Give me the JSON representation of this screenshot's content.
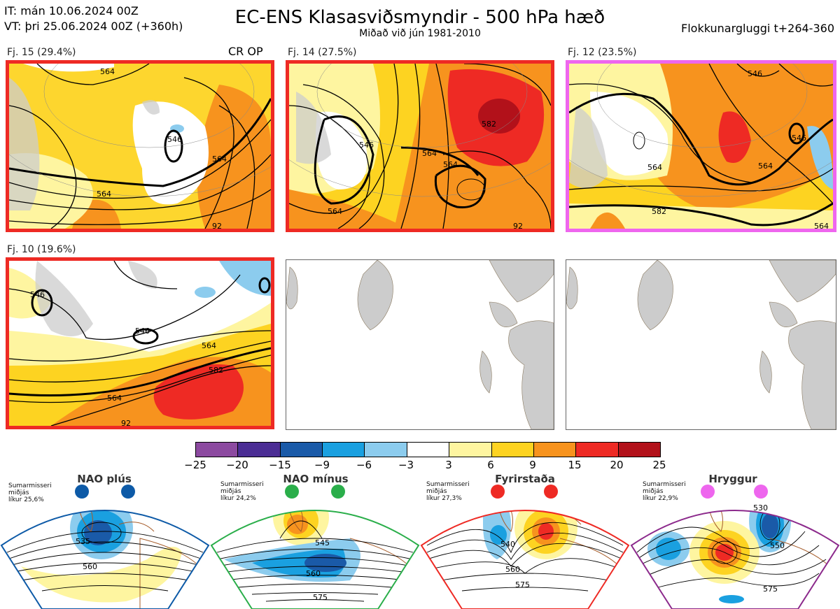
{
  "header": {
    "init_time": "IT: mán 10.06.2024 00Z",
    "valid_time": "VT: þri 25.06.2024 00Z  (+360h)",
    "title": "EC-ENS Klasasviðsmyndir - 500 hPa hæð",
    "subtitle": "Miðað við jún 1981-2010",
    "window": "Flokkunargluggi t+264-360"
  },
  "clusters": [
    {
      "label": "Fj. 15 (29.4%)",
      "border": "#ee2a24",
      "extra": "CR OP",
      "contours": [
        "546",
        "564",
        "564",
        "564",
        "92"
      ]
    },
    {
      "label": "Fj. 14 (27.5%)",
      "border": "#ee2a24",
      "contours": [
        "546",
        "564",
        "564",
        "564",
        "582",
        "92"
      ]
    },
    {
      "label": "Fj. 12 (23.5%)",
      "border": "#ee66ee",
      "contours": [
        "546",
        "564",
        "564",
        "582",
        "546",
        "564"
      ]
    },
    {
      "label": "Fj. 10 (19.6%)",
      "border": "#ee2a24",
      "contours": [
        "546",
        "546",
        "564",
        "564",
        "582",
        "92"
      ]
    }
  ],
  "colorbar": {
    "ticks": [
      "−25",
      "−20",
      "−15",
      "−9",
      "−6",
      "−3",
      "3",
      "6",
      "9",
      "15",
      "20",
      "25"
    ],
    "colors": [
      "#8c4aa0",
      "#4b2d94",
      "#1a5aa8",
      "#1aa0e0",
      "#8cccee",
      "#ffffff",
      "#fef5a0",
      "#fdd321",
      "#f7931e",
      "#ee2a24",
      "#b2111a"
    ]
  },
  "regimes": [
    {
      "name": "NAO plús",
      "season": "Sumarmisseri",
      "period": "miðjás",
      "likelihood": "líkur 25,6%",
      "marker": "#0d5aa7",
      "border": "#0d5aa7",
      "contours": [
        "535",
        "560"
      ]
    },
    {
      "name": "NAO mínus",
      "season": "Sumarmisseri",
      "period": "miðjás",
      "likelihood": "líkur 24,2%",
      "marker": "#2aae4a",
      "border": "#2aae4a",
      "contours": [
        "545",
        "560",
        "575"
      ]
    },
    {
      "name": "Fyrirstaða",
      "season": "Sumarmisseri",
      "period": "miðjás",
      "likelihood": "líkur 27,3%",
      "marker": "#ee2a24",
      "border": "#ee2a24",
      "contours": [
        "540",
        "560",
        "575"
      ]
    },
    {
      "name": "Hryggur",
      "season": "Sumarmisseri",
      "period": "miðjás",
      "likelihood": "líkur 22,9%",
      "marker": "#ee66ee",
      "border": "#8c2a8c",
      "contours": [
        "530",
        "550",
        "575"
      ]
    }
  ]
}
